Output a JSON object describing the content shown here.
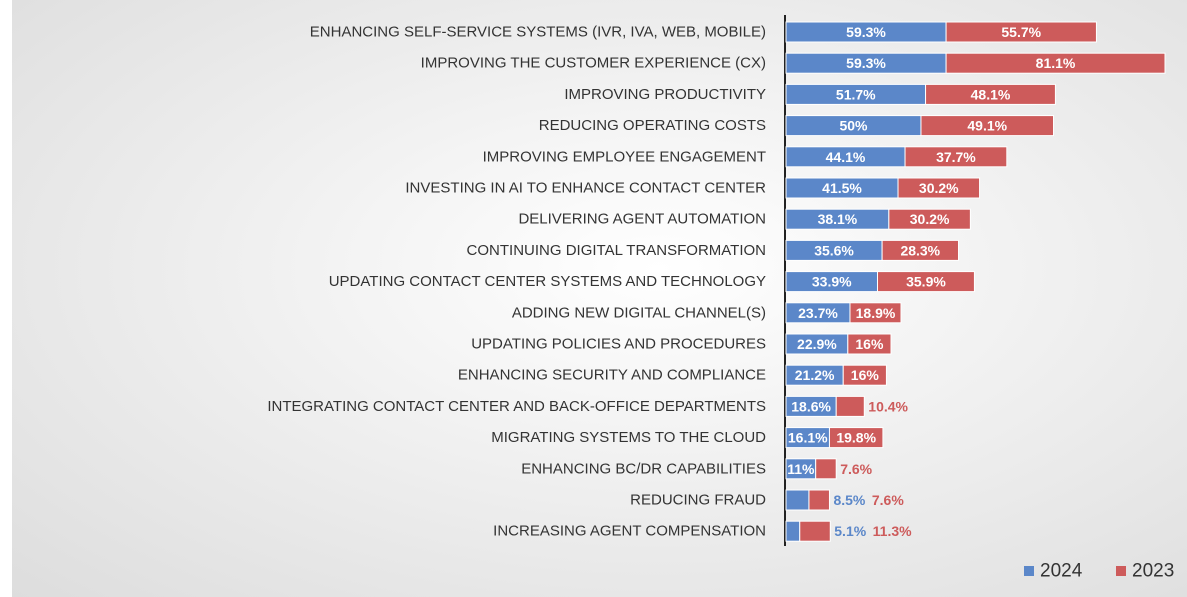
{
  "chart_data": {
    "type": "stacked-bar-horizontal",
    "categories": [
      "ENHANCING SELF-SERVICE SYSTEMS (IVR, IVA, WEB, MOBILE)",
      "IMPROVING THE CUSTOMER EXPERIENCE (CX)",
      "IMPROVING PRODUCTIVITY",
      "REDUCING OPERATING COSTS",
      "IMPROVING EMPLOYEE ENGAGEMENT",
      "INVESTING IN AI TO ENHANCE CONTACT CENTER",
      "DELIVERING AGENT AUTOMATION",
      "CONTINUING DIGITAL TRANSFORMATION",
      "UPDATING CONTACT CENTER SYSTEMS AND TECHNOLOGY",
      "ADDING NEW DIGITAL CHANNEL(S)",
      "UPDATING POLICIES AND PROCEDURES",
      "ENHANCING SECURITY AND COMPLIANCE",
      "INTEGRATING CONTACT CENTER AND BACK-OFFICE DEPARTMENTS",
      "MIGRATING SYSTEMS TO THE CLOUD",
      "ENHANCING BC/DR CAPABILITIES",
      "REDUCING FRAUD",
      "INCREASING AGENT COMPENSATION"
    ],
    "series": [
      {
        "name": "2024",
        "color": "#5b87c9",
        "values": [
          59.3,
          59.3,
          51.7,
          50,
          44.1,
          41.5,
          38.1,
          35.6,
          33.9,
          23.7,
          22.9,
          21.2,
          18.6,
          16.1,
          11,
          8.5,
          5.1
        ],
        "value_labels": [
          "59.3%",
          "59.3%",
          "51.7%",
          "50%",
          "44.1%",
          "41.5%",
          "38.1%",
          "35.6%",
          "33.9%",
          "23.7%",
          "22.9%",
          "21.2%",
          "18.6%",
          "16.1%",
          "11%",
          "8.5%",
          "5.1%"
        ]
      },
      {
        "name": "2023",
        "color": "#cd5b5b",
        "values": [
          55.7,
          81.1,
          48.1,
          49.1,
          37.7,
          30.2,
          30.2,
          28.3,
          35.9,
          18.9,
          16,
          16,
          10.4,
          19.8,
          7.6,
          7.6,
          11.3
        ],
        "value_labels": [
          "55.7%",
          "81.1%",
          "48.1%",
          "49.1%",
          "37.7%",
          "30.2%",
          "30.2%",
          "28.3%",
          "35.9%",
          "18.9%",
          "16%",
          "16%",
          "10.4%",
          "19.8%",
          "7.6%",
          "7.6%",
          "11.3%"
        ]
      }
    ],
    "legend": "bottom-right"
  }
}
